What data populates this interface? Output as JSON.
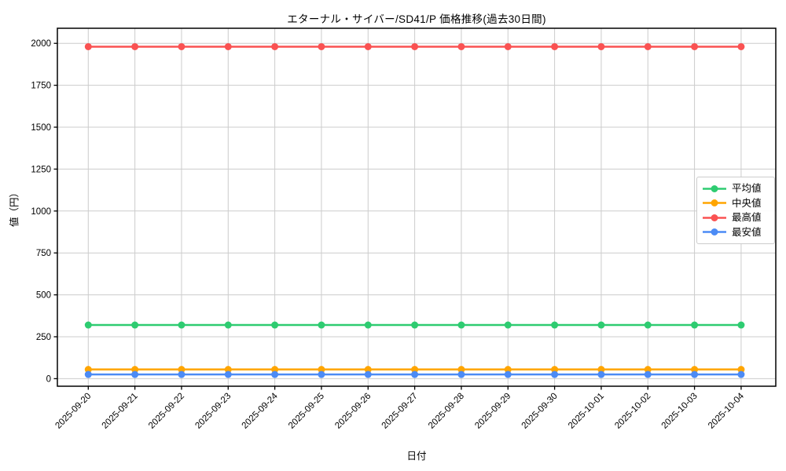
{
  "chart_data": {
    "type": "line",
    "title": "エターナル・サイバー/SD41/P 価格推移(過去30日間)",
    "xlabel": "日付",
    "ylabel": "値（円）",
    "x": [
      "2025-09-20",
      "2025-09-21",
      "2025-09-22",
      "2025-09-23",
      "2025-09-24",
      "2025-09-25",
      "2025-09-26",
      "2025-09-27",
      "2025-09-28",
      "2025-09-29",
      "2025-09-30",
      "2025-10-01",
      "2025-10-02",
      "2025-10-03",
      "2025-10-04"
    ],
    "series": [
      {
        "key": "avg",
        "name": "平均値",
        "color": "#2ecc71",
        "values": [
          320,
          320,
          320,
          320,
          320,
          320,
          320,
          320,
          320,
          320,
          320,
          320,
          320,
          320,
          320
        ]
      },
      {
        "key": "median",
        "name": "中央値",
        "color": "#ffa500",
        "values": [
          55,
          55,
          55,
          55,
          55,
          55,
          55,
          55,
          55,
          55,
          55,
          55,
          55,
          55,
          55
        ]
      },
      {
        "key": "max",
        "name": "最高値",
        "color": "#fa5252",
        "values": [
          1980,
          1980,
          1980,
          1980,
          1980,
          1980,
          1980,
          1980,
          1980,
          1980,
          1980,
          1980,
          1980,
          1980,
          1980
        ]
      },
      {
        "key": "min",
        "name": "最安値",
        "color": "#4c8bf5",
        "values": [
          25,
          25,
          25,
          25,
          25,
          25,
          25,
          25,
          25,
          25,
          25,
          25,
          25,
          25,
          25
        ]
      }
    ],
    "yticks": [
      0,
      250,
      500,
      750,
      1000,
      1250,
      1500,
      1750,
      2000
    ],
    "ylim": [
      -45,
      2090
    ],
    "grid": true,
    "grid_color": "#cccccc",
    "legend_position": "center-right",
    "background": "#ffffff",
    "text_color": "#000000"
  }
}
